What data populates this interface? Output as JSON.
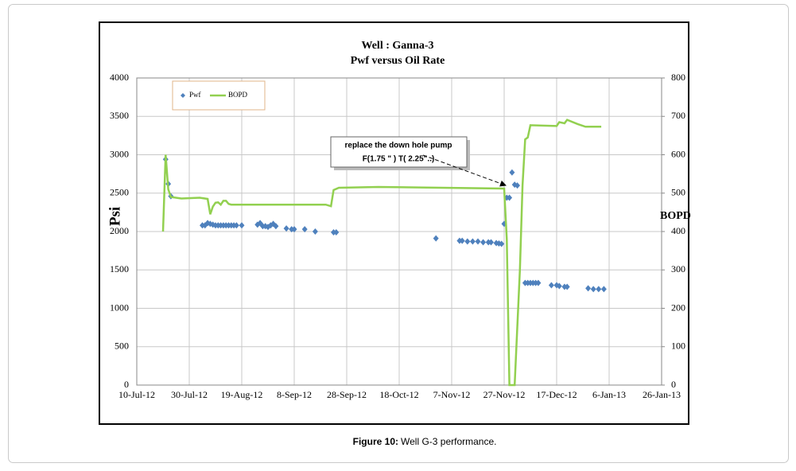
{
  "chart_data": {
    "type": "combo",
    "title": "Well : Ganna-3",
    "subtitle": "Pwf versus Oil Rate",
    "ylabel": "Psi",
    "y2label": "BOPD",
    "xlim": [
      "2012-07-10",
      "2013-01-26"
    ],
    "xticks": [
      {
        "value": "2012-07-10",
        "label": "10-Jul-12"
      },
      {
        "value": "2012-07-30",
        "label": "30-Jul-12"
      },
      {
        "value": "2012-08-19",
        "label": "19-Aug-12"
      },
      {
        "value": "2012-09-08",
        "label": "8-Sep-12"
      },
      {
        "value": "2012-09-28",
        "label": "28-Sep-12"
      },
      {
        "value": "2012-10-18",
        "label": "18-Oct-12"
      },
      {
        "value": "2012-11-07",
        "label": "7-Nov-12"
      },
      {
        "value": "2012-11-27",
        "label": "27-Nov-12"
      },
      {
        "value": "2012-12-17",
        "label": "17-Dec-12"
      },
      {
        "value": "2013-01-06",
        "label": "6-Jan-13"
      },
      {
        "value": "2013-01-26",
        "label": "26-Jan-13"
      }
    ],
    "ylim": [
      0,
      4000
    ],
    "yticks": [
      0,
      500,
      1000,
      1500,
      2000,
      2500,
      3000,
      3500,
      4000
    ],
    "y2lim": [
      0,
      800
    ],
    "y2ticks": [
      0,
      100,
      200,
      300,
      400,
      500,
      600,
      700,
      800
    ],
    "grid": true,
    "legend": "top-left",
    "annotation": {
      "lines": [
        "replace the down hole pump",
        "F(1.75 \" ) T( 2.25\"..)"
      ]
    },
    "series": [
      {
        "name": "Pwf",
        "type": "scatter",
        "color": "#4f81bd",
        "x": [
          "2012-07-21",
          "2012-07-22",
          "2012-07-23",
          "2012-08-04",
          "2012-08-05",
          "2012-08-06",
          "2012-08-07",
          "2012-08-08",
          "2012-08-09",
          "2012-08-10",
          "2012-08-11",
          "2012-08-12",
          "2012-08-13",
          "2012-08-14",
          "2012-08-15",
          "2012-08-16",
          "2012-08-17",
          "2012-08-19",
          "2012-08-25",
          "2012-08-26",
          "2012-08-27",
          "2012-08-28",
          "2012-08-29",
          "2012-08-30",
          "2012-08-31",
          "2012-09-01",
          "2012-09-05",
          "2012-09-07",
          "2012-09-08",
          "2012-09-12",
          "2012-09-16",
          "2012-09-23",
          "2012-09-24",
          "2012-11-01",
          "2012-11-10",
          "2012-11-11",
          "2012-11-13",
          "2012-11-15",
          "2012-11-17",
          "2012-11-19",
          "2012-11-21",
          "2012-11-22",
          "2012-11-24",
          "2012-11-25",
          "2012-11-26",
          "2012-11-27",
          "2012-11-28",
          "2012-11-29",
          "2012-11-30",
          "2012-12-01",
          "2012-12-02",
          "2012-12-05",
          "2012-12-06",
          "2012-12-07",
          "2012-12-08",
          "2012-12-09",
          "2012-12-10",
          "2012-12-15",
          "2012-12-17",
          "2012-12-18",
          "2012-12-20",
          "2012-12-21",
          "2012-12-29",
          "2012-12-31",
          "2013-01-02",
          "2013-01-04"
        ],
        "values": [
          2940,
          2620,
          2460,
          2080,
          2080,
          2110,
          2100,
          2090,
          2080,
          2080,
          2080,
          2080,
          2080,
          2080,
          2080,
          2080,
          2080,
          2080,
          2090,
          2110,
          2070,
          2070,
          2060,
          2080,
          2100,
          2070,
          2040,
          2030,
          2030,
          2030,
          2000,
          1990,
          1990,
          1910,
          1880,
          1880,
          1870,
          1870,
          1870,
          1860,
          1860,
          1860,
          1850,
          1845,
          1840,
          2100,
          2440,
          2440,
          2770,
          2610,
          2600,
          1330,
          1330,
          1330,
          1330,
          1330,
          1330,
          1300,
          1300,
          1290,
          1280,
          1280,
          1260,
          1250,
          1250,
          1250
        ]
      },
      {
        "name": "BOPD",
        "type": "line",
        "color": "#92d050",
        "axis": "y2",
        "x": [
          "2012-07-20",
          "2012-07-21",
          "2012-07-22",
          "2012-07-23",
          "2012-07-27",
          "2012-08-03",
          "2012-08-06",
          "2012-08-07",
          "2012-08-08",
          "2012-08-09",
          "2012-08-10",
          "2012-08-11",
          "2012-08-12",
          "2012-08-13",
          "2012-08-14",
          "2012-08-15",
          "2012-09-20",
          "2012-09-22",
          "2012-09-23",
          "2012-09-25",
          "2012-10-10",
          "2012-11-27",
          "2012-11-28",
          "2012-11-29",
          "2012-12-01",
          "2012-12-03",
          "2012-12-04",
          "2012-12-05",
          "2012-12-06",
          "2012-12-07",
          "2012-12-17",
          "2012-12-18",
          "2012-12-20",
          "2012-12-21",
          "2012-12-25",
          "2012-12-28",
          "2013-01-03"
        ],
        "values": [
          400,
          600,
          510,
          490,
          486,
          488,
          485,
          445,
          465,
          475,
          476,
          470,
          480,
          480,
          472,
          470,
          470,
          466,
          508,
          514,
          516,
          512,
          380,
          0,
          0,
          300,
          520,
          640,
          645,
          677,
          675,
          685,
          682,
          691,
          680,
          673,
          673
        ]
      }
    ]
  },
  "caption": {
    "label": "Figure 10:",
    "text": "Well G-3 performance."
  }
}
